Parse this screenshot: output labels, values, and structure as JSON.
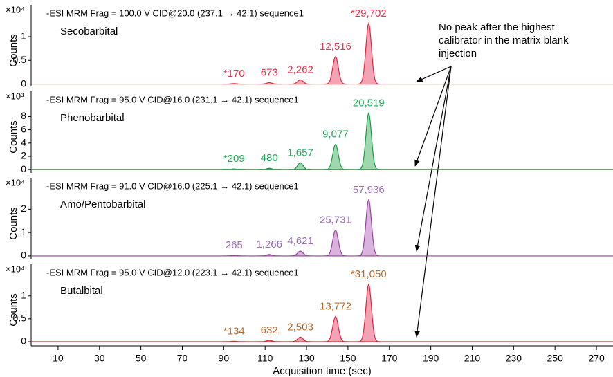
{
  "chart_data": [
    {
      "type": "line",
      "title": "-ESI MRM Frag = 100.0 V CID@20.0 (237.1 → 42.1) sequence1",
      "compound": "Secobarbital",
      "ylabel": "Counts",
      "y_scale": "×10⁴",
      "color": "#e0243c",
      "fill": "#f4a3b5",
      "label_color": "#e8344a",
      "xlim": [
        -3,
        278
      ],
      "ylim": [
        -0.05,
        1.7
      ],
      "yticks": [
        0,
        0.5,
        1
      ],
      "peaks": {
        "x": [
          95,
          112,
          127,
          144,
          160
        ],
        "values": [
          0.01,
          0.03,
          0.09,
          0.58,
          1.28
        ],
        "labels": [
          "*170",
          "673",
          "2,262",
          "12,516",
          "*29,702"
        ]
      },
      "annotation": "No peak after the highest calibrator in the matrix blank injection"
    },
    {
      "type": "line",
      "title": "-ESI MRM Frag = 95.0 V CID@16.0 (231.1 → 42.1) sequence1",
      "compound": "Phenobarbital",
      "ylabel": "Counts",
      "y_scale": "×10³",
      "color": "#1a9a4a",
      "fill": "#9fd8ad",
      "label_color": "#1faa55",
      "xlim": [
        -3,
        278
      ],
      "ylim": [
        -0.5,
        12
      ],
      "yticks": [
        0,
        2,
        4,
        6,
        8
      ],
      "peaks": {
        "x": [
          95,
          112,
          127,
          144,
          160
        ],
        "values": [
          0.1,
          0.2,
          1.0,
          3.8,
          8.5
        ],
        "labels": [
          "*209",
          "480",
          "1,657",
          "9,077",
          "20,519"
        ]
      }
    },
    {
      "type": "line",
      "title": "-ESI MRM Frag = 91.0 V CID@16.0 (225.1 → 42.1) sequence1",
      "compound": "Amo/Pentobarbital",
      "ylabel": "Counts",
      "y_scale": "×10⁴",
      "color": "#9a3fa0",
      "fill": "#d9b3dd",
      "label_color": "#9a6fb8",
      "xlim": [
        -3,
        278
      ],
      "ylim": [
        -0.15,
        3.4
      ],
      "yticks": [
        0,
        1,
        2
      ],
      "peaks": {
        "x": [
          95,
          112,
          127,
          144,
          160
        ],
        "values": [
          0.02,
          0.06,
          0.2,
          1.1,
          2.4
        ],
        "labels": [
          "265",
          "1,266",
          "4,621",
          "25,731",
          "57,936"
        ]
      }
    },
    {
      "type": "line",
      "title": "-ESI MRM Frag = 95.0 V CID@12.0 (223.1 → 42.1) sequence1",
      "compound": "Butalbital",
      "ylabel": "Counts",
      "y_scale": "×10⁴",
      "color": "#e0243c",
      "fill": "#f4a3b5",
      "label_color": "#b8692a",
      "xlim": [
        -3,
        278
      ],
      "ylim": [
        -0.09,
        1.72
      ],
      "yticks": [
        0,
        0.5,
        1
      ],
      "peaks": {
        "x": [
          95,
          112,
          127,
          144,
          160
        ],
        "values": [
          0.01,
          0.03,
          0.1,
          0.55,
          1.25
        ],
        "labels": [
          "*134",
          "632",
          "2,503",
          "13,772",
          "*31,050"
        ]
      },
      "xlabel": "Acquisition time (sec)",
      "xticks": [
        10,
        30,
        50,
        70,
        90,
        110,
        130,
        150,
        170,
        190,
        210,
        230,
        250,
        270
      ]
    }
  ]
}
